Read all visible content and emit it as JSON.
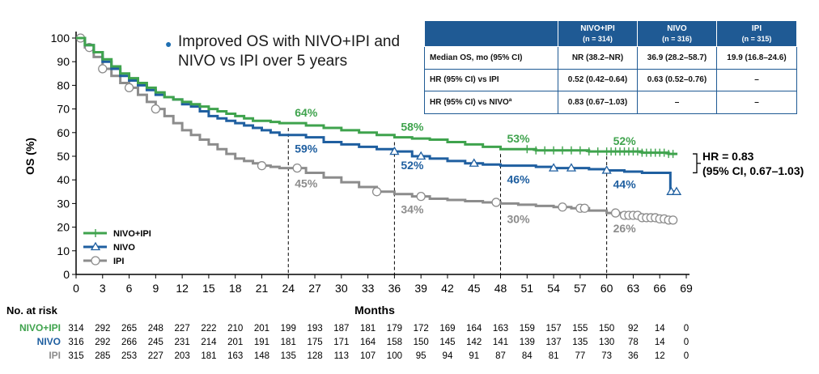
{
  "colors": {
    "nivo_ipi": "#3fa34d",
    "nivo": "#1f5fa0",
    "ipi": "#8c8c8c",
    "accent_table": "#1f5a94"
  },
  "bullet_text": "Improved OS with NIVO+IPI and NIVO vs IPI over 5 years",
  "table": {
    "headers": [
      {
        "name": "NIVO+IPI",
        "n": "(n = 314)"
      },
      {
        "name": "NIVO",
        "n": "(n = 316)"
      },
      {
        "name": "IPI",
        "n": "(n = 315)"
      }
    ],
    "rows": [
      {
        "label": "Median OS, mo (95% CI)",
        "values": [
          "NR (38.2–NR)",
          "36.9 (28.2–58.7)",
          "19.9 (16.8–24.6)"
        ]
      },
      {
        "label": "HR (95% CI) vs IPI",
        "values": [
          "0.52 (0.42–0.64)",
          "0.63 (0.52–0.76)",
          "–"
        ]
      },
      {
        "label": "HR (95% CI) vs NIVOª",
        "values": [
          "0.83 (0.67–1.03)",
          "–",
          "–"
        ]
      }
    ]
  },
  "hr_annotation": {
    "line1": "HR = 0.83",
    "line2": "(95% CI, 0.67–1.03)"
  },
  "chart_data": {
    "type": "line",
    "ylabel": "OS (%)",
    "xlabel": "Months",
    "xlim": [
      0,
      69
    ],
    "ylim": [
      0,
      100
    ],
    "xticks": [
      0,
      3,
      6,
      9,
      12,
      15,
      18,
      21,
      24,
      27,
      30,
      33,
      36,
      39,
      42,
      45,
      48,
      51,
      54,
      57,
      60,
      63,
      66,
      69
    ],
    "yticks": [
      0,
      10,
      20,
      30,
      40,
      50,
      60,
      70,
      80,
      90,
      100
    ],
    "reference_months": [
      24,
      36,
      48,
      60
    ],
    "legend": {
      "placement": "bottom-left",
      "entries": [
        "NIVO+IPI",
        "NIVO",
        "IPI"
      ]
    },
    "series": [
      {
        "name": "NIVO+IPI",
        "marker": "plus",
        "x": [
          0,
          1,
          2,
          3,
          4,
          5,
          6,
          7,
          8,
          9,
          10,
          11,
          12,
          13,
          14,
          15,
          16,
          17,
          18,
          19,
          20,
          21,
          22,
          23,
          24,
          26,
          28,
          30,
          32,
          34,
          36,
          38,
          40,
          42,
          44,
          46,
          48,
          50,
          52,
          54,
          56,
          58,
          60,
          62,
          64,
          66,
          67,
          68
        ],
        "y": [
          100,
          97,
          94,
          91,
          88,
          85,
          83,
          81,
          79,
          77,
          75,
          74,
          73,
          72,
          71,
          70,
          69,
          68,
          67,
          66,
          65,
          65,
          64.5,
          64,
          64,
          63,
          62,
          61,
          60,
          59,
          58,
          57.5,
          57,
          56,
          55,
          54,
          53,
          53,
          52.5,
          52.5,
          52.5,
          52,
          52,
          52,
          51.5,
          51.5,
          51,
          51
        ],
        "censor_x": [
          51,
          52,
          53,
          54,
          55,
          56,
          57,
          58,
          59,
          60,
          60.5,
          61,
          61.5,
          62,
          62.5,
          63,
          63.5,
          64,
          64.5,
          65,
          65.5,
          66,
          66.5,
          67,
          67.5
        ]
      },
      {
        "name": "NIVO",
        "marker": "triangle",
        "x": [
          0,
          1,
          2,
          3,
          4,
          5,
          6,
          7,
          8,
          9,
          10,
          11,
          12,
          13,
          14,
          15,
          16,
          17,
          18,
          19,
          20,
          21,
          22,
          23,
          24,
          26,
          28,
          30,
          32,
          34,
          36,
          38,
          40,
          42,
          44,
          46,
          48,
          50,
          52,
          54,
          56,
          58,
          60,
          62,
          64,
          66,
          67,
          67.2,
          68
        ],
        "y": [
          100,
          97,
          94,
          90,
          87,
          84,
          82,
          80,
          78,
          76,
          75,
          74,
          72,
          71,
          69,
          67,
          66,
          65,
          64,
          63,
          62,
          61,
          60,
          59,
          59,
          58,
          56,
          55,
          54,
          53,
          52,
          50,
          49,
          48,
          47,
          46.5,
          46,
          46,
          45.5,
          45,
          45,
          44.5,
          44,
          43.5,
          43,
          43,
          43,
          35,
          35
        ],
        "markers_x": [
          36,
          39,
          45,
          54,
          56,
          60,
          67.3,
          67.9
        ]
      },
      {
        "name": "IPI",
        "marker": "circle",
        "x": [
          0,
          1,
          2,
          3,
          4,
          5,
          6,
          7,
          8,
          9,
          10,
          11,
          12,
          13,
          14,
          15,
          16,
          17,
          18,
          19,
          20,
          21,
          22,
          23,
          24,
          26,
          28,
          30,
          32,
          34,
          36,
          38,
          40,
          42,
          44,
          46,
          48,
          50,
          52,
          54,
          56,
          58,
          60,
          62,
          64,
          66,
          67,
          68
        ],
        "y": [
          100,
          96,
          92,
          87,
          84,
          81,
          79,
          76,
          73,
          70,
          67,
          64,
          61,
          59,
          57,
          55,
          53,
          51,
          49,
          48,
          47,
          46,
          45.5,
          45,
          45,
          43,
          41,
          39,
          37,
          35,
          34,
          33,
          32,
          31.5,
          31,
          30.5,
          30,
          29.5,
          29,
          28.5,
          28,
          27,
          26,
          25,
          24,
          23.5,
          23,
          23
        ],
        "markers_x": [
          0.5,
          1.5,
          3,
          6,
          9,
          21,
          25,
          34,
          39,
          47.5,
          55,
          57,
          57.5,
          61,
          62,
          62.5,
          63,
          63.5,
          64,
          64.5,
          65,
          65.5,
          66,
          66.5,
          67,
          67.5
        ]
      }
    ],
    "landmarks": [
      {
        "label": "64%",
        "series": "NIVO+IPI",
        "x": 24
      },
      {
        "label": "59%",
        "series": "NIVO",
        "x": 24
      },
      {
        "label": "45%",
        "series": "IPI",
        "x": 24
      },
      {
        "label": "58%",
        "series": "NIVO+IPI",
        "x": 36
      },
      {
        "label": "52%",
        "series": "NIVO",
        "x": 36
      },
      {
        "label": "34%",
        "series": "IPI",
        "x": 36
      },
      {
        "label": "53%",
        "series": "NIVO+IPI",
        "x": 48
      },
      {
        "label": "46%",
        "series": "NIVO",
        "x": 48
      },
      {
        "label": "30%",
        "series": "IPI",
        "x": 48
      },
      {
        "label": "52%",
        "series": "NIVO+IPI",
        "x": 60
      },
      {
        "label": "44%",
        "series": "NIVO",
        "x": 60
      },
      {
        "label": "26%",
        "series": "IPI",
        "x": 60
      }
    ],
    "at_risk": {
      "title": "No. at risk",
      "rows": [
        {
          "name": "NIVO+IPI",
          "values": [
            314,
            292,
            265,
            248,
            227,
            222,
            210,
            201,
            199,
            193,
            187,
            181,
            179,
            172,
            169,
            164,
            163,
            159,
            157,
            155,
            150,
            92,
            14,
            0
          ]
        },
        {
          "name": "NIVO",
          "values": [
            316,
            292,
            266,
            245,
            231,
            214,
            201,
            191,
            181,
            175,
            171,
            164,
            158,
            150,
            145,
            142,
            141,
            139,
            137,
            135,
            130,
            78,
            14,
            0
          ]
        },
        {
          "name": "IPI",
          "values": [
            315,
            285,
            253,
            227,
            203,
            181,
            163,
            148,
            135,
            128,
            113,
            107,
            100,
            95,
            94,
            91,
            87,
            84,
            81,
            77,
            73,
            36,
            12,
            0
          ]
        }
      ]
    }
  }
}
